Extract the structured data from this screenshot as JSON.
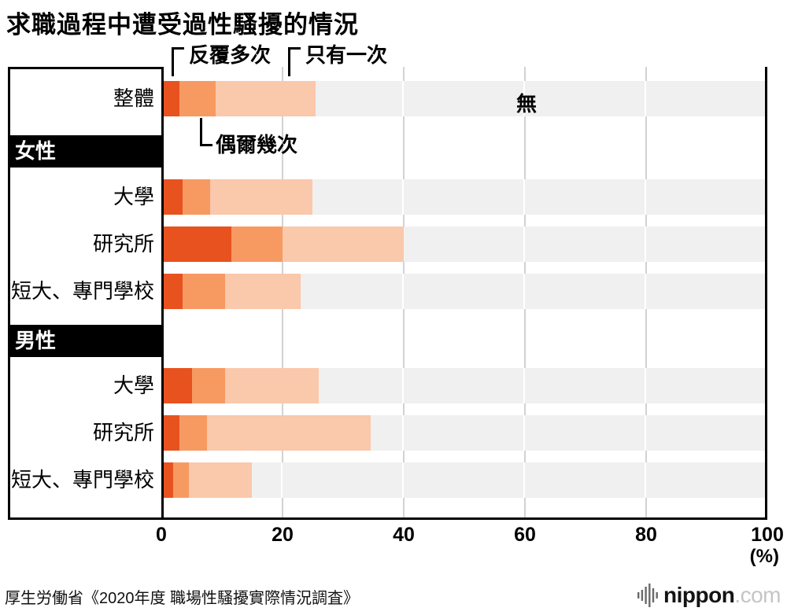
{
  "title": "求職過程中遭受過性騷擾的情況",
  "chart_data": {
    "type": "bar",
    "orientation": "horizontal",
    "stacked": true,
    "title": "求職過程中遭受過性騷擾的情況",
    "x_axis": {
      "unit": "(%)",
      "range": [
        0,
        100
      ],
      "ticks": [
        0,
        20,
        40,
        60,
        80,
        100
      ]
    },
    "legend": [
      {
        "label": "反覆多次",
        "color": "#e8521f"
      },
      {
        "label": "偶爾幾次",
        "color": "#f79a62"
      },
      {
        "label": "只有一次",
        "color": "#fac8ab"
      },
      {
        "label": "無",
        "color": "#f0f0f0"
      }
    ],
    "rows": [
      {
        "type": "bar",
        "label": "整體",
        "values": [
          3,
          6,
          16.5
        ],
        "none": 74.5
      },
      {
        "type": "section",
        "label": "女性"
      },
      {
        "type": "bar",
        "label": "大學",
        "values": [
          3.5,
          4.5,
          17
        ],
        "none": 75
      },
      {
        "type": "bar",
        "label": "研究所",
        "values": [
          11.5,
          8.5,
          20
        ],
        "none": 60
      },
      {
        "type": "bar",
        "label": "短大、專門學校",
        "values": [
          3.5,
          7,
          12.5
        ],
        "none": 77
      },
      {
        "type": "section",
        "label": "男性"
      },
      {
        "type": "bar",
        "label": "大學",
        "values": [
          5,
          5.5,
          15.5
        ],
        "none": 74
      },
      {
        "type": "bar",
        "label": "研究所",
        "values": [
          3,
          4.5,
          27
        ],
        "none": 65.5
      },
      {
        "type": "bar",
        "label": "短大、專門學校",
        "values": [
          2,
          2.5,
          10.5
        ],
        "none": 85
      }
    ]
  },
  "source": "厚生労働省《2020年度 職場性騷擾實際情況調査》",
  "logo": {
    "name": "nippon",
    "tld": ".com"
  }
}
